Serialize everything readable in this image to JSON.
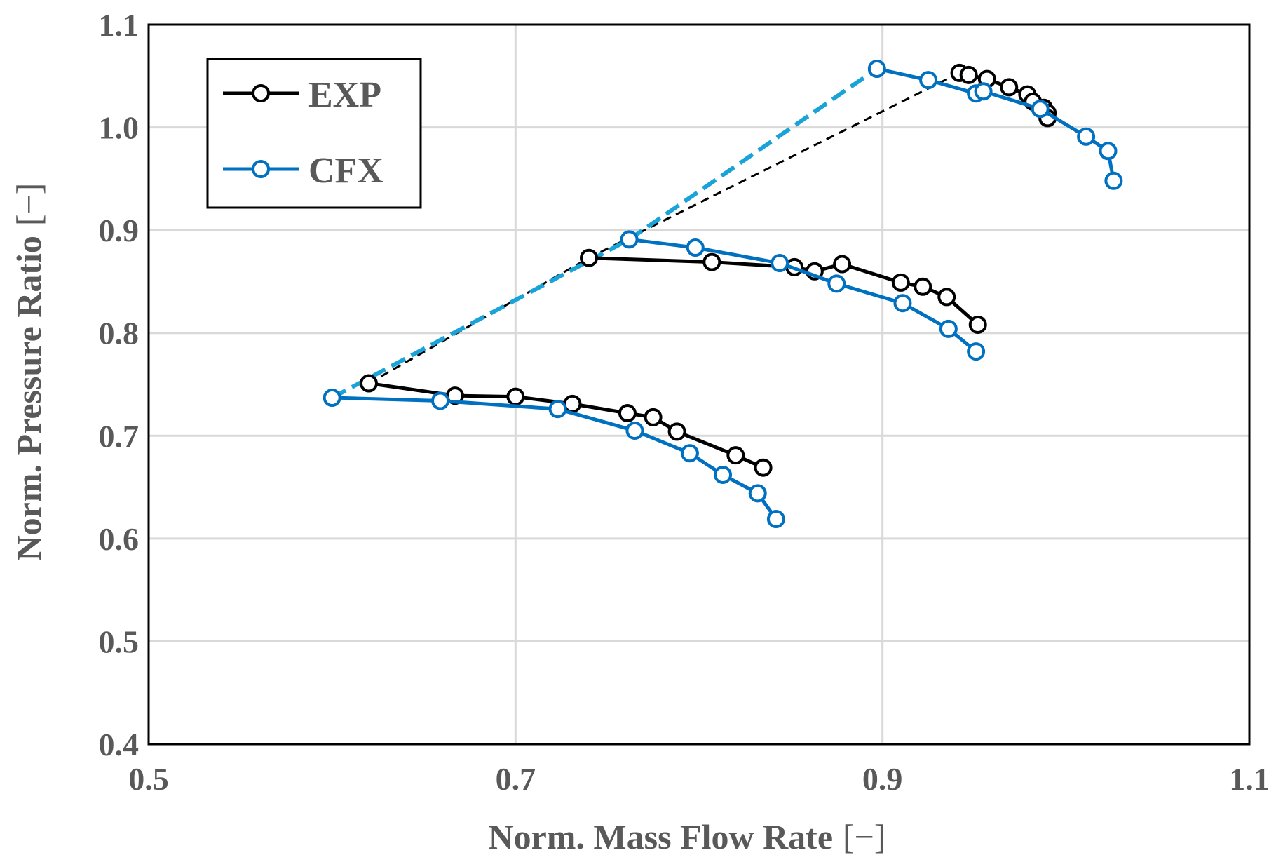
{
  "chart_data": {
    "type": "line",
    "xlabel": "Norm. Mass Flow Rate",
    "ylabel": "Norm. Pressure Ratio",
    "unit_label": "[−]",
    "xlim": [
      0.5,
      1.1
    ],
    "ylim": [
      0.4,
      1.1
    ],
    "xticks": [
      "0.5",
      "0.7",
      "0.9",
      "1.1"
    ],
    "yticks": [
      "0.4",
      "0.5",
      "0.6",
      "0.7",
      "0.8",
      "0.9",
      "1.0",
      "1.1"
    ],
    "grid": true,
    "legend_position": "top-left",
    "legend": [
      {
        "key": "exp",
        "label": "EXP",
        "color": "#000000"
      },
      {
        "key": "cfx",
        "label": "CFX",
        "color": "#0070c0"
      }
    ],
    "series": [
      {
        "name": "EXP",
        "group": "speed-1",
        "color": "#000000",
        "x": [
          0.62,
          0.667,
          0.7,
          0.731,
          0.761,
          0.775,
          0.788,
          0.82,
          0.835
        ],
        "y": [
          0.751,
          0.739,
          0.738,
          0.731,
          0.722,
          0.718,
          0.704,
          0.681,
          0.669
        ]
      },
      {
        "name": "EXP",
        "group": "speed-2",
        "color": "#000000",
        "x": [
          0.74,
          0.807,
          0.852,
          0.863,
          0.878,
          0.91,
          0.922,
          0.935,
          0.952
        ],
        "y": [
          0.873,
          0.869,
          0.864,
          0.86,
          0.867,
          0.849,
          0.845,
          0.835,
          0.808
        ]
      },
      {
        "name": "EXP",
        "group": "speed-3",
        "color": "#000000",
        "x": [
          0.942,
          0.947,
          0.957,
          0.969,
          0.979,
          0.982,
          0.988,
          0.99,
          0.99
        ],
        "y": [
          1.053,
          1.051,
          1.047,
          1.039,
          1.032,
          1.025,
          1.019,
          1.014,
          1.009
        ]
      },
      {
        "name": "CFX",
        "group": "speed-1",
        "color": "#0070c0",
        "x": [
          0.6,
          0.659,
          0.723,
          0.765,
          0.795,
          0.813,
          0.832,
          0.842
        ],
        "y": [
          0.737,
          0.734,
          0.726,
          0.705,
          0.683,
          0.662,
          0.644,
          0.619
        ]
      },
      {
        "name": "CFX",
        "group": "speed-2",
        "color": "#0070c0",
        "x": [
          0.762,
          0.798,
          0.844,
          0.875,
          0.911,
          0.936,
          0.951
        ],
        "y": [
          0.891,
          0.883,
          0.868,
          0.848,
          0.829,
          0.804,
          0.782
        ]
      },
      {
        "name": "CFX",
        "group": "speed-3",
        "color": "#0070c0",
        "x": [
          0.897,
          0.925,
          0.951,
          0.955,
          0.986,
          1.011,
          1.023,
          1.026
        ],
        "y": [
          1.057,
          1.046,
          1.033,
          1.035,
          1.018,
          0.991,
          0.977,
          0.948
        ]
      }
    ],
    "surge_lines": [
      {
        "name": "EXP surge line",
        "color": "#000000",
        "style": "dashed",
        "x": [
          0.62,
          0.74,
          0.942
        ],
        "y": [
          0.751,
          0.873,
          1.053
        ]
      },
      {
        "name": "CFX surge line",
        "color": "#1aa3d9",
        "style": "dashed",
        "x": [
          0.6,
          0.762,
          0.897
        ],
        "y": [
          0.737,
          0.891,
          1.057
        ]
      }
    ]
  }
}
